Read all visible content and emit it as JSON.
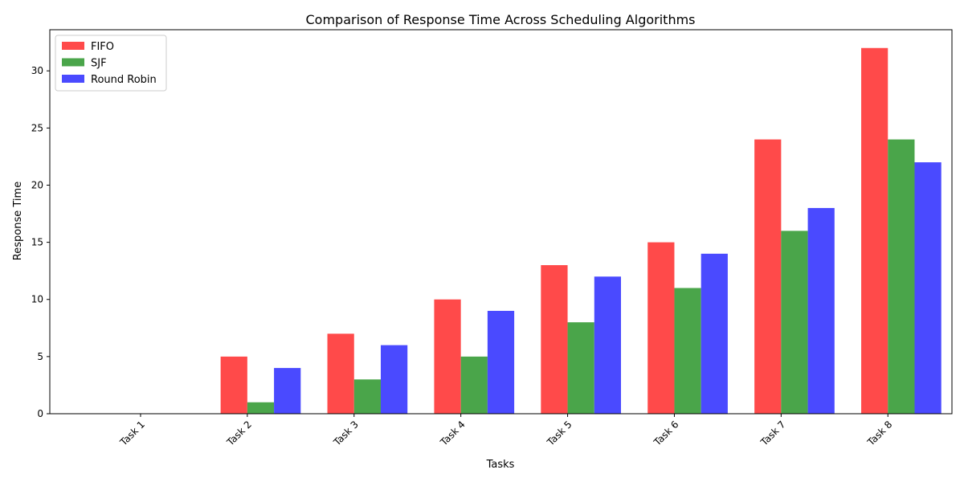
{
  "chart_data": {
    "type": "bar",
    "title": "Comparison of Response Time Across Scheduling Algorithms",
    "xlabel": "Tasks",
    "ylabel": "Response Time",
    "categories": [
      "Task 1",
      "Task 2",
      "Task 3",
      "Task 4",
      "Task 5",
      "Task 6",
      "Task 7",
      "Task 8"
    ],
    "series": [
      {
        "name": "FIFO",
        "color": "#ff4a4a",
        "values": [
          0,
          5,
          7,
          10,
          13,
          15,
          24,
          32
        ]
      },
      {
        "name": "SJF",
        "color": "#4aa54a",
        "values": [
          0,
          1,
          3,
          5,
          8,
          11,
          16,
          24
        ]
      },
      {
        "name": "Round Robin",
        "color": "#4a4aff",
        "values": [
          0,
          4,
          6,
          9,
          12,
          14,
          18,
          22
        ]
      }
    ],
    "ylim": [
      0,
      33.6
    ],
    "yticks": [
      0,
      5,
      10,
      15,
      20,
      25,
      30
    ],
    "grid": false,
    "legend_position": "top-left"
  }
}
